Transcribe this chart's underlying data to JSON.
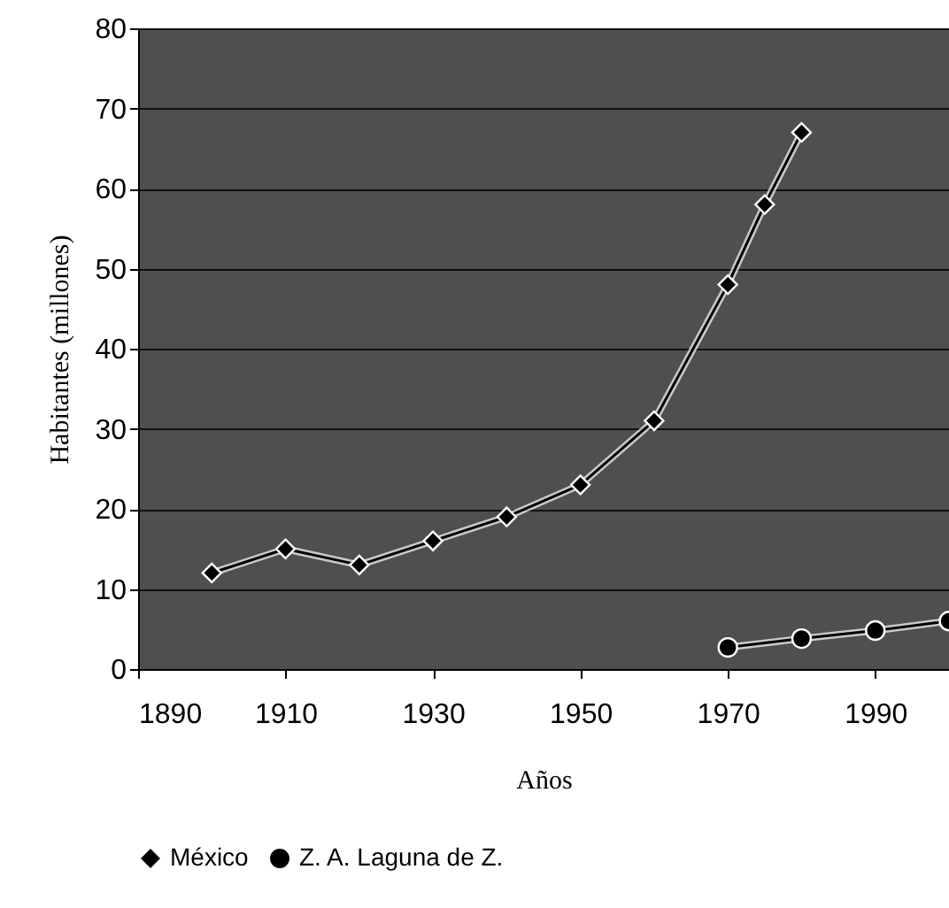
{
  "chart_data": {
    "type": "line",
    "xlabel": "Años",
    "ylabel": "Habitantes (millones)",
    "xlim": [
      1890,
      2000
    ],
    "xticks": [
      1890,
      1910,
      1930,
      1950,
      1970,
      1990
    ],
    "ylim": [
      0,
      80
    ],
    "yticks": [
      0,
      10,
      20,
      30,
      40,
      50,
      60,
      70,
      80
    ],
    "grid": "y",
    "legend": "bottom",
    "series": [
      {
        "name": "México",
        "color": "#000000",
        "marker": "diamond",
        "x": [
          1900,
          1910,
          1920,
          1930,
          1940,
          1950,
          1960,
          1970,
          1975,
          1980
        ],
        "values": [
          12,
          15,
          13,
          16,
          19,
          23,
          31,
          48,
          58,
          67
        ]
      },
      {
        "name": "Z. A. Laguna de Z.",
        "color": "#000000",
        "marker": "circle",
        "x": [
          1970,
          1980,
          1990,
          2000
        ],
        "values": [
          2.7,
          3.8,
          4.8,
          6
        ]
      }
    ]
  }
}
